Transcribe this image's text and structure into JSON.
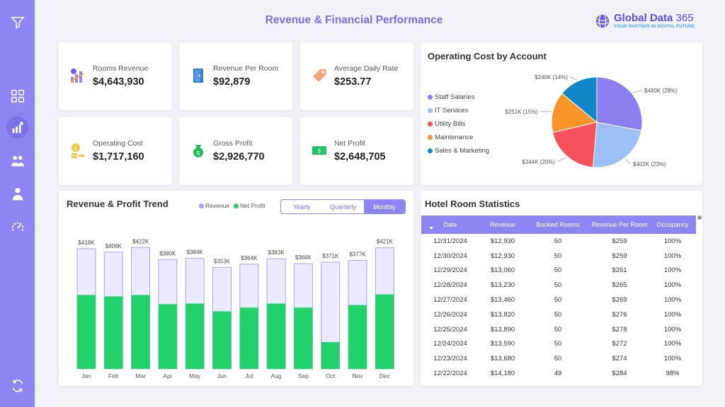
{
  "header": {
    "title": "Revenue & Financial Performance",
    "brand_name": "Global Data",
    "brand_number": "365",
    "brand_tagline": "YOUR PARTNER IN DIGITAL FUTURE"
  },
  "sidebar": {
    "items": [
      {
        "icon": "filter-icon"
      },
      {
        "icon": "dashboard-grid-icon"
      },
      {
        "icon": "revenue-chart-icon",
        "active": true
      },
      {
        "icon": "people-icon"
      },
      {
        "icon": "user-download-icon"
      },
      {
        "icon": "gauge-icon"
      },
      {
        "icon": "refresh-icon"
      }
    ]
  },
  "kpis": [
    {
      "label": "Rooms Revenue",
      "value": "$4,643,930",
      "icon": "growth-bars-icon"
    },
    {
      "label": "Revenue Per Room",
      "value": "$92,879",
      "icon": "door-icon"
    },
    {
      "label": "Average Daily Rate",
      "value": "$253.77",
      "icon": "price-tag-icon"
    },
    {
      "label": "Operating Cost",
      "value": "$1,717,160",
      "icon": "coins-icon"
    },
    {
      "label": "Gross Profit",
      "value": "$2,926,770",
      "icon": "money-bag-icon"
    },
    {
      "label": "Net Profit",
      "value": "$2,648,705",
      "icon": "cash-icon"
    }
  ],
  "pie": {
    "title": "Operating Cost by Account",
    "slices": [
      {
        "name": "Staff Salaries",
        "label": "$480K (28%)",
        "value": 480,
        "color": "#8b7ef0"
      },
      {
        "name": "IT Services",
        "label": "$402K (23%)",
        "value": 402,
        "color": "#9cc0f5"
      },
      {
        "name": "Utility Bills",
        "label": "$344K (20%)",
        "value": 344,
        "color": "#f5525e"
      },
      {
        "name": "Maintenance",
        "label": "$251K (15%)",
        "value": 251,
        "color": "#f7952a"
      },
      {
        "name": "Sales & Marketing",
        "label": "$240K (14%)",
        "value": 240,
        "color": "#1187c8"
      }
    ]
  },
  "trend": {
    "title": "Revenue & Profit Trend",
    "legend_revenue": "Revenue",
    "legend_net": "Net Profit",
    "color_revenue": "#a9a3f0",
    "color_net": "#22d16a",
    "tabs": [
      "Yearly",
      "Quarterly",
      "Monthly"
    ],
    "selected_tab": "Monthly"
  },
  "chart_data": {
    "type": "bar",
    "categories": [
      "Jan",
      "Feb",
      "Mar",
      "Apr",
      "May",
      "Jun",
      "Jul",
      "Aug",
      "Sep",
      "Oct",
      "Nov",
      "Dec"
    ],
    "series": [
      {
        "name": "Revenue",
        "values": [
          418,
          406,
          422,
          380,
          384,
          353,
          364,
          383,
          366,
          371,
          377,
          421
        ]
      },
      {
        "name": "Net Profit",
        "values": [
          257,
          252,
          257,
          225,
          227,
          200,
          213,
          227,
          213,
          93,
          222,
          259
        ]
      }
    ],
    "data_labels": [
      "$418K",
      "$406K",
      "$422K",
      "$380K",
      "$384K",
      "$353K",
      "$364K",
      "$383K",
      "$366K",
      "$371K",
      "$377K",
      "$421K"
    ],
    "ylim": [
      0,
      430
    ]
  },
  "table": {
    "title": "Hotel Room Statistics",
    "columns": [
      "Date",
      "Revenue",
      "Booked Rooms",
      "Revenue Per Room",
      "Occupancy"
    ],
    "rows": [
      [
        "12/31/2024",
        "$12,930",
        "50",
        "$259",
        "100%"
      ],
      [
        "12/30/2024",
        "$12,930",
        "50",
        "$259",
        "100%"
      ],
      [
        "12/29/2024",
        "$13,060",
        "50",
        "$261",
        "100%"
      ],
      [
        "12/28/2024",
        "$13,230",
        "50",
        "$265",
        "100%"
      ],
      [
        "12/27/2024",
        "$13,460",
        "50",
        "$269",
        "100%"
      ],
      [
        "12/26/2024",
        "$13,820",
        "50",
        "$276",
        "100%"
      ],
      [
        "12/25/2024",
        "$13,890",
        "50",
        "$278",
        "100%"
      ],
      [
        "12/24/2024",
        "$13,590",
        "50",
        "$272",
        "100%"
      ],
      [
        "12/23/2024",
        "$13,680",
        "50",
        "$274",
        "100%"
      ],
      [
        "12/22/2024",
        "$14,180",
        "49",
        "$284",
        "98%"
      ]
    ]
  }
}
